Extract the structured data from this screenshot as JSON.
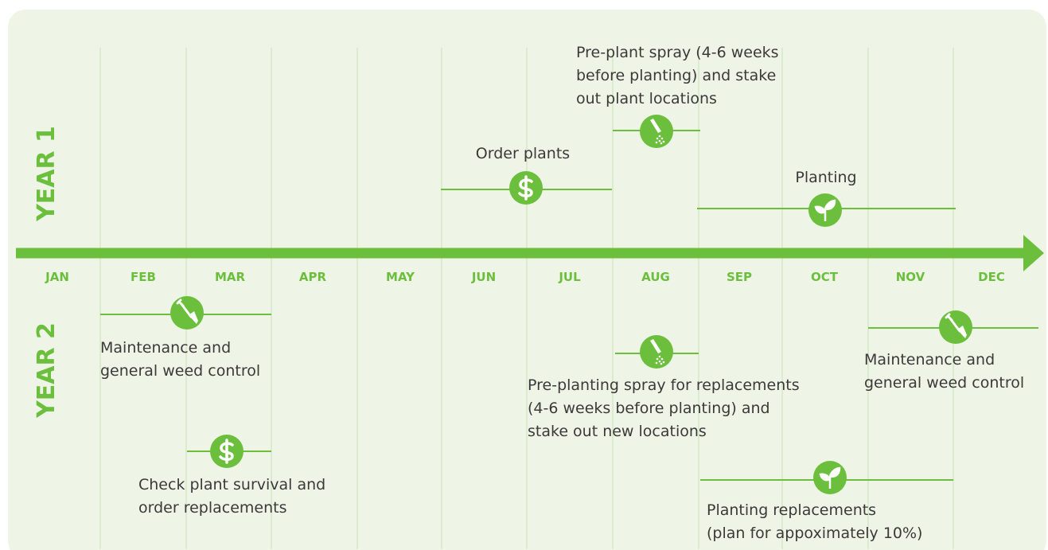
{
  "years": [
    "YEAR 1",
    "YEAR 2"
  ],
  "months": [
    "JAN",
    "FEB",
    "MAR",
    "APR",
    "MAY",
    "JUN",
    "JUL",
    "AUG",
    "SEP",
    "OCT",
    "NOV",
    "DEC"
  ],
  "tasks": [
    {
      "lines": [
        "Order plants"
      ]
    },
    {
      "lines": [
        "Pre-plant spray (4-6 weeks",
        "before planting) and stake",
        "out plant locations"
      ]
    },
    {
      "lines": [
        "Planting"
      ]
    },
    {
      "lines": [
        "Maintenance and",
        "general weed control"
      ]
    },
    {
      "lines": [
        "Check plant survival and",
        "order replacements"
      ]
    },
    {
      "lines": [
        "Pre-planting spray for replacements",
        "(4-6 weeks before planting) and",
        "stake out new locations"
      ]
    },
    {
      "lines": [
        "Maintenance and",
        "general weed control"
      ]
    },
    {
      "lines": [
        "Planting replacements",
        "(plan for appoximately 10%)"
      ]
    }
  ]
}
